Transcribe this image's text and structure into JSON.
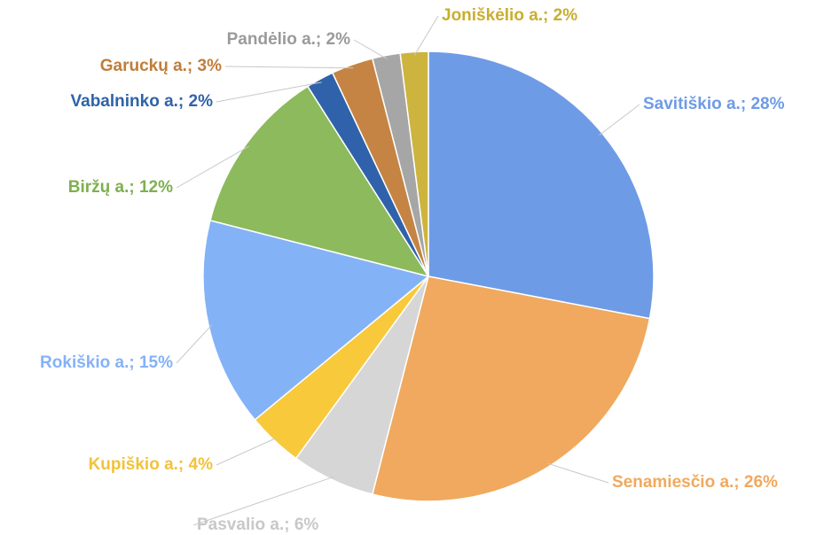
{
  "chart_data": {
    "type": "pie",
    "labels": [
      "Savitiškio a.; 28%",
      "Senamiesčio a.; 26%",
      "Pasvalio a.; 6%",
      "Kupiškio a.; 4%",
      "Rokiškio a.; 15%",
      "Biržų a.; 12%",
      "Vabalninko a.; 2%",
      "Garuckų a.; 3%",
      "Pandėlio a.; 2%",
      "Joniškėlio a.; 2%"
    ],
    "values": [
      28,
      26,
      6,
      4,
      15,
      12,
      2,
      3,
      2,
      2
    ],
    "colors": [
      "#6e9be6",
      "#f0a95e",
      "#d6d6d6",
      "#f9c93c",
      "#84b2f7",
      "#8cba5c",
      "#2f62aa",
      "#c58443",
      "#a6a6a6",
      "#cdb43e"
    ],
    "label_colors": [
      "#6e9be6",
      "#f0a95e",
      "#c8c8c8",
      "#f2c23a",
      "#84b2f7",
      "#7eb04e",
      "#2f62aa",
      "#c07d3a",
      "#9a9a9a",
      "#c9ae2e"
    ]
  }
}
